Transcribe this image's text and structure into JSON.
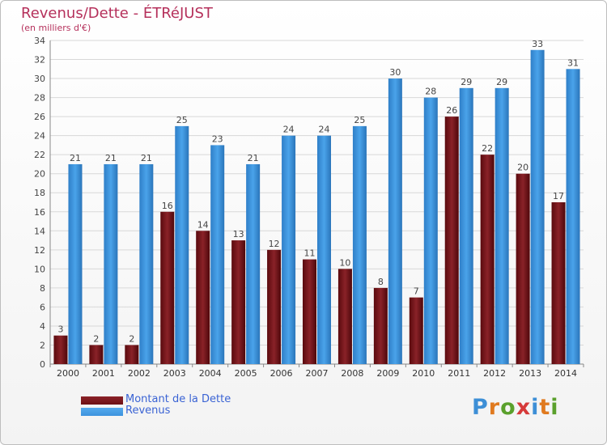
{
  "chart_data": {
    "type": "bar",
    "title": "Revenus/Dette - ÉTRéJUST",
    "subtitle": "(en milliers d'€)",
    "categories": [
      "2000",
      "2001",
      "2002",
      "2003",
      "2004",
      "2005",
      "2006",
      "2007",
      "2008",
      "2009",
      "2010",
      "2011",
      "2012",
      "2013",
      "2014"
    ],
    "series": [
      {
        "name": "Montant de la Dette",
        "color": "#6e0f14",
        "values": [
          3,
          2,
          2,
          16,
          14,
          13,
          12,
          11,
          10,
          8,
          7,
          26,
          22,
          20,
          17
        ]
      },
      {
        "name": "Revenus",
        "color": "#3d93dd",
        "values": [
          21,
          21,
          21,
          25,
          23,
          21,
          24,
          24,
          25,
          30,
          28,
          29,
          29,
          33,
          31
        ]
      }
    ],
    "ylim": [
      0,
      34
    ],
    "yticks": [
      0,
      2,
      4,
      6,
      8,
      10,
      12,
      14,
      16,
      18,
      20,
      22,
      24,
      26,
      28,
      30,
      32,
      34
    ],
    "grid": true,
    "legend_position": "bottom-left"
  },
  "logo": {
    "text": "Proxiti"
  }
}
